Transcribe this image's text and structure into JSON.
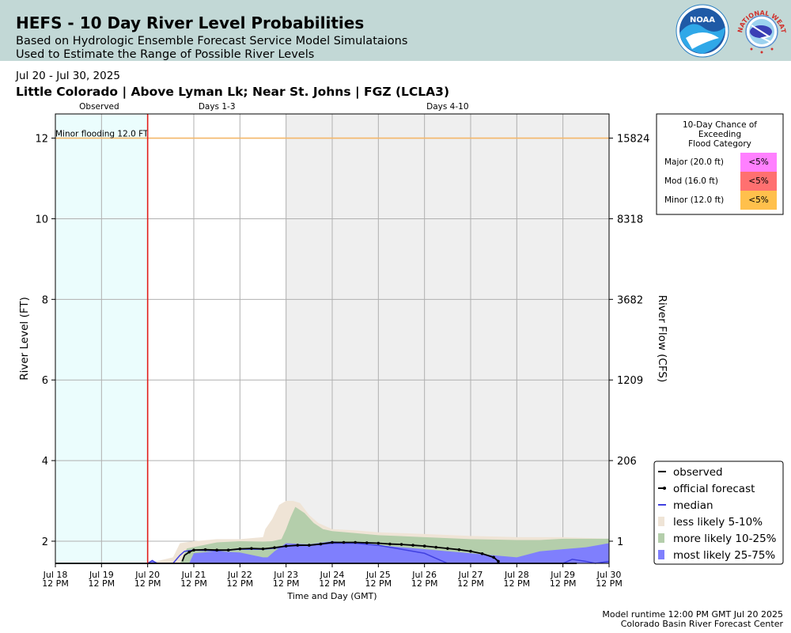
{
  "header": {
    "title": "HEFS - 10 Day River Level Probabilities",
    "subtitle1": "Based on Hydrologic Ensemble Forecast Service Model Simulataions",
    "subtitle2": "Used to Estimate the Range of Possible River Levels"
  },
  "date_range": "Jul 20 - Jul 30, 2025",
  "location": "Little Colorado | Above Lyman Lk; Near St. Johns | FGZ (LCLA3)",
  "logos": {
    "noaa_text": "NOAA",
    "nws_text": "NATIONAL WEATHER SERVICE"
  },
  "footer": {
    "runtime": "Model runtime 12:00 PM GMT Jul 20 2025",
    "center": "Colorado Basin River Forecast Center"
  },
  "colors": {
    "observed_bg": "#ebfdfd",
    "days410_bg": "#efefef",
    "less_likely": "#efe4d6",
    "more_likely": "#b4ceab",
    "most_likely": "#7f7ffd",
    "median": "#4040e0",
    "minor_line": "#f5b86a",
    "now_line": "#e0201c",
    "major_cell": "#ff80ff",
    "mod_cell": "#ff7070",
    "minor_cell": "#ffc04c"
  },
  "chart_data": {
    "type": "area",
    "xlabel": "Time and Day (GMT)",
    "ylabel": "River Level (FT)",
    "ylabel_right": "River Flow (CFS)",
    "x_ticks": [
      "Jul 18|12 PM",
      "Jul 19|12 PM",
      "Jul 20|12 PM",
      "Jul 21|12 PM",
      "Jul 22|12 PM",
      "Jul 23|12 PM",
      "Jul 24|12 PM",
      "Jul 25|12 PM",
      "Jul 26|12 PM",
      "Jul 27|12 PM",
      "Jul 28|12 PM",
      "Jul 29|12 PM",
      "Jul 30|12 PM"
    ],
    "xlim": [
      0,
      12
    ],
    "ylim": [
      1.45,
      12.6
    ],
    "y_ticks": [
      2,
      4,
      6,
      8,
      10,
      12
    ],
    "y_right_ticks": [
      {
        "stage": 2,
        "label": "1"
      },
      {
        "stage": 4,
        "label": "206"
      },
      {
        "stage": 6,
        "label": "1209"
      },
      {
        "stage": 8,
        "label": "3682"
      },
      {
        "stage": 10,
        "label": "8318"
      },
      {
        "stage": 12,
        "label": "15824"
      }
    ],
    "grid": true,
    "regions": [
      {
        "label": "Observed",
        "from": 0,
        "to": 2,
        "label_at": 0.95
      },
      {
        "label": "Days 1-3",
        "from": 2,
        "to": 5,
        "label_at": 3.5
      },
      {
        "label": "Days 4-10",
        "from": 5,
        "to": 12,
        "label_at": 8.5
      }
    ],
    "now_x": 2,
    "flood_lines": [
      {
        "label": "Minor flooding 12.0 FT",
        "stage": 12.0
      }
    ],
    "baseline": 1.45,
    "less_likely_band": {
      "x": [
        2.0,
        2.55,
        2.7,
        3.0,
        3.5,
        4.0,
        4.5,
        4.55,
        4.7,
        4.85,
        5.0,
        5.15,
        5.3,
        5.5,
        5.7,
        6.0,
        6.5,
        7.0,
        8.0,
        9.0,
        10.0,
        11.0,
        12.0
      ],
      "lo": [
        1.45,
        1.45,
        1.45,
        1.45,
        1.45,
        1.45,
        1.45,
        1.45,
        1.45,
        1.45,
        1.45,
        1.45,
        1.45,
        1.45,
        1.45,
        1.45,
        1.45,
        1.45,
        1.45,
        1.45,
        1.45,
        1.45,
        1.45
      ],
      "hi": [
        1.45,
        1.6,
        1.95,
        2.0,
        2.05,
        2.05,
        2.1,
        2.3,
        2.55,
        2.9,
        3.0,
        3.0,
        2.95,
        2.65,
        2.45,
        2.3,
        2.27,
        2.22,
        2.18,
        2.13,
        2.1,
        2.1,
        2.06
      ]
    },
    "more_likely_band": {
      "x": [
        2.0,
        2.7,
        2.85,
        3.5,
        4.0,
        4.5,
        4.7,
        4.9,
        5.0,
        5.1,
        5.2,
        5.4,
        5.6,
        5.8,
        6.0,
        6.5,
        7.0,
        8.0,
        9.0,
        10.0,
        10.5,
        11.0,
        12.0
      ],
      "lo": [
        1.45,
        1.45,
        1.45,
        1.45,
        1.45,
        1.45,
        1.45,
        1.45,
        1.45,
        1.45,
        1.45,
        1.45,
        1.45,
        1.45,
        1.45,
        1.45,
        1.45,
        1.45,
        1.45,
        1.45,
        1.45,
        1.45,
        1.45
      ],
      "hi": [
        1.45,
        1.45,
        1.82,
        1.97,
        2.0,
        1.99,
        2.0,
        2.05,
        2.3,
        2.6,
        2.85,
        2.7,
        2.45,
        2.3,
        2.25,
        2.2,
        2.15,
        2.1,
        2.05,
        2.03,
        2.03,
        2.06,
        2.06
      ]
    },
    "most_likely_band": {
      "x": [
        2.0,
        2.05,
        2.15,
        2.25,
        2.5,
        2.9,
        3.0,
        3.5,
        4.0,
        4.5,
        4.6,
        4.75,
        5.0,
        5.5,
        6.0,
        6.5,
        7.0,
        7.5,
        8.0,
        9.0,
        10.0,
        10.5,
        11.0,
        11.5,
        12.0
      ],
      "lo": [
        1.45,
        1.45,
        1.45,
        1.45,
        1.45,
        1.45,
        1.45,
        1.45,
        1.45,
        1.45,
        1.45,
        1.45,
        1.45,
        1.45,
        1.45,
        1.45,
        1.45,
        1.45,
        1.45,
        1.45,
        1.45,
        1.45,
        1.45,
        1.45,
        1.45
      ],
      "hi": [
        1.45,
        1.5,
        1.5,
        1.45,
        1.45,
        1.45,
        1.7,
        1.75,
        1.72,
        1.6,
        1.6,
        1.75,
        1.95,
        1.92,
        2.0,
        1.95,
        1.9,
        1.85,
        1.8,
        1.7,
        1.6,
        1.75,
        1.8,
        1.85,
        1.95
      ]
    },
    "median": {
      "x": [
        2.0,
        2.1,
        2.2,
        2.3,
        2.55,
        2.7,
        2.8,
        3.0,
        3.5,
        4.0,
        4.5,
        4.8,
        5.0,
        5.5,
        6.0,
        6.5,
        7.0,
        7.5,
        8.0,
        8.3,
        8.5,
        9.0,
        9.5,
        9.9,
        10.0,
        11.0,
        11.2,
        11.5,
        11.7,
        12.0
      ],
      "y": [
        1.45,
        1.52,
        1.45,
        1.45,
        1.45,
        1.65,
        1.75,
        1.78,
        1.76,
        1.8,
        1.8,
        1.83,
        1.88,
        1.9,
        1.95,
        1.95,
        1.9,
        1.8,
        1.7,
        1.55,
        1.45,
        1.45,
        1.45,
        1.45,
        1.45,
        1.45,
        1.55,
        1.5,
        1.45,
        1.5
      ]
    },
    "official_forecast": {
      "x": [
        2.75,
        2.8,
        2.9,
        3.0,
        3.25,
        3.5,
        3.75,
        4.0,
        4.25,
        4.5,
        4.75,
        5.0,
        5.25,
        5.5,
        5.75,
        6.0,
        6.25,
        6.5,
        6.75,
        7.0,
        7.25,
        7.5,
        7.75,
        8.0,
        8.25,
        8.5,
        8.75,
        9.0,
        9.25,
        9.5,
        9.6
      ],
      "y": [
        1.5,
        1.65,
        1.73,
        1.78,
        1.79,
        1.78,
        1.78,
        1.81,
        1.82,
        1.81,
        1.84,
        1.88,
        1.9,
        1.9,
        1.93,
        1.97,
        1.97,
        1.97,
        1.96,
        1.95,
        1.93,
        1.92,
        1.9,
        1.88,
        1.85,
        1.82,
        1.79,
        1.75,
        1.69,
        1.6,
        1.5
      ]
    },
    "observed": {
      "x": [
        0,
        2,
        2.3,
        2.5,
        9.6,
        10.3,
        10.5,
        11.3
      ],
      "y": [
        1.45,
        1.45,
        1.45,
        1.45,
        1.45,
        1.45,
        1.45,
        1.45
      ]
    },
    "flood_table": {
      "title": [
        "10-Day Chance of",
        "Exceeding",
        "Flood Category"
      ],
      "rows": [
        {
          "label": "Major (20.0 ft)",
          "value": "<5%"
        },
        {
          "label": "Mod (16.0 ft)",
          "value": "<5%"
        },
        {
          "label": "Minor (12.0 ft)",
          "value": "<5%"
        }
      ]
    },
    "legend": {
      "placement": "bottom-right",
      "entries": [
        "observed",
        "official forecast",
        "median",
        "less likely 5-10%",
        "more likely 10-25%",
        "most likely 25-75%"
      ]
    }
  }
}
